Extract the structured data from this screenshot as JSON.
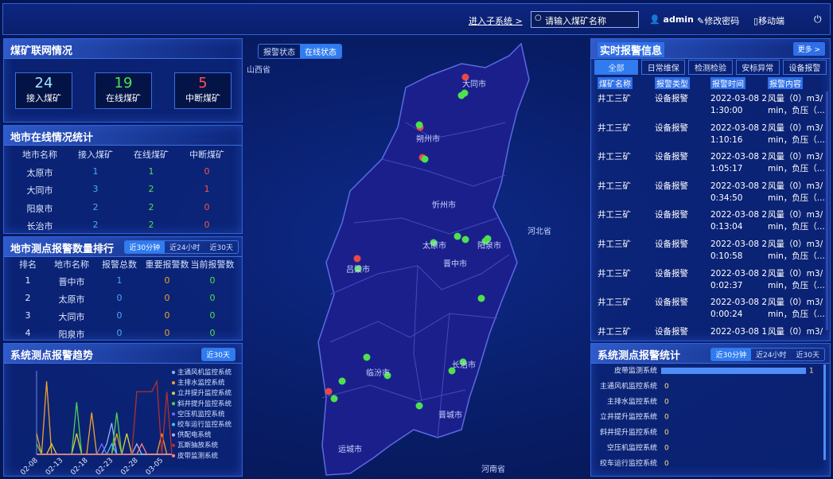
{
  "header": {
    "subsystem_link": "进入子系统 >",
    "search_placeholder": "请输入煤矿名称",
    "user": "admin",
    "change_password": "修改密码",
    "mobile": "移动端"
  },
  "mine_network": {
    "title": "煤矿联网情况",
    "stats": [
      {
        "value": 24,
        "label": "接入煤矿"
      },
      {
        "value": 19,
        "label": "在线煤矿"
      },
      {
        "value": 5,
        "label": "中断煤矿"
      }
    ]
  },
  "city_online": {
    "title": "地市在线情况统计",
    "columns": [
      "地市名称",
      "接入煤矿",
      "在线煤矿",
      "中断煤矿"
    ],
    "rows": [
      [
        "太原市",
        1,
        1,
        0
      ],
      [
        "大同市",
        3,
        2,
        1
      ],
      [
        "阳泉市",
        2,
        2,
        0
      ],
      [
        "长治市",
        2,
        2,
        0
      ]
    ]
  },
  "alarm_rank": {
    "title": "地市测点报警数量排行",
    "tabs": [
      "近30分钟",
      "近24小时",
      "近30天"
    ],
    "columns": [
      "排名",
      "地市名称",
      "报警总数",
      "重要报警数",
      "当前报警数"
    ],
    "rows": [
      [
        1,
        "晋中市",
        1,
        0,
        0
      ],
      [
        2,
        "太原市",
        0,
        0,
        0
      ],
      [
        3,
        "大同市",
        0,
        0,
        0
      ],
      [
        4,
        "阳泉市",
        0,
        0,
        0
      ]
    ]
  },
  "trend_panel": {
    "tabs": [
      "近30天"
    ]
  },
  "map": {
    "tabs": [
      "报警状态",
      "在线状态"
    ],
    "labels": [
      "山西省",
      "河北省",
      "河南省",
      "大同市",
      "朔州市",
      "忻州市",
      "太原市",
      "阳泉市",
      "晋中市",
      "吕梁市",
      "长治市",
      "临汾市",
      "晋城市",
      "运城市"
    ]
  },
  "realtime": {
    "title": "实时报警信息",
    "more": "更多 >",
    "tabs": [
      "全部",
      "日常维保",
      "检测检验",
      "安标异常",
      "设备报警"
    ],
    "columns": [
      "煤矿名称",
      "报警类型",
      "报警时间",
      "报警内容"
    ],
    "rows": [
      [
        "井工三矿",
        "设备报警",
        "2022-03-08 21:30:00",
        "风量（0）m3/min，负压（..."
      ],
      [
        "井工三矿",
        "设备报警",
        "2022-03-08 21:10:16",
        "风量（0）m3/min，负压（..."
      ],
      [
        "井工三矿",
        "设备报警",
        "2022-03-08 21:05:17",
        "风量（0）m3/min，负压（..."
      ],
      [
        "井工三矿",
        "设备报警",
        "2022-03-08 20:34:50",
        "风量（0）m3/min，负压（..."
      ],
      [
        "井工三矿",
        "设备报警",
        "2022-03-08 20:13:04",
        "风量（0）m3/min，负压（..."
      ],
      [
        "井工三矿",
        "设备报警",
        "2022-03-08 20:10:58",
        "风量（0）m3/min，负压（..."
      ],
      [
        "井工三矿",
        "设备报警",
        "2022-03-08 20:02:37",
        "风量（0）m3/min，负压（..."
      ],
      [
        "井工三矿",
        "设备报警",
        "2022-03-08 20:00:24",
        "风量（0）m3/min，负压（..."
      ],
      [
        "井工三矿",
        "设备报警",
        "2022-03-08 1",
        "风量（0）m3/"
      ]
    ]
  },
  "system_stats_panel": {
    "tabs": [
      "近30分钟",
      "近24小时",
      "近30天"
    ]
  },
  "chart_data": [
    {
      "type": "line",
      "title": "系统测点报警趋势",
      "categories": [
        "02-08",
        null,
        null,
        null,
        null,
        "02-13",
        null,
        null,
        null,
        null,
        "02-18",
        null,
        null,
        null,
        null,
        "02-23",
        null,
        null,
        null,
        null,
        "02-28",
        null,
        null,
        null,
        null,
        "03-05",
        null,
        null
      ],
      "ylim": [
        0,
        8
      ],
      "series": [
        {
          "name": "主通风机监控系统",
          "color": "#8ab4ff",
          "values": [
            0,
            0,
            0,
            0,
            0,
            0,
            0,
            0,
            0,
            0,
            0,
            0,
            0,
            0,
            1,
            3,
            0,
            0,
            0,
            0,
            0,
            0,
            0,
            0,
            0,
            0,
            0,
            0
          ]
        },
        {
          "name": "主排水监控系统",
          "color": "#f0a030",
          "values": [
            2,
            0,
            7,
            0,
            0,
            0,
            0,
            0,
            0,
            0,
            0,
            4,
            0,
            0,
            0,
            0,
            2,
            0,
            0,
            0,
            0,
            0,
            0,
            0,
            0,
            2,
            0,
            0
          ]
        },
        {
          "name": "立井提升监控系统",
          "color": "#e0d040",
          "values": [
            0,
            0,
            0,
            1,
            0,
            0,
            0,
            0,
            2,
            0,
            0,
            0,
            0,
            0,
            0,
            0,
            0,
            0,
            2,
            0,
            0,
            0,
            0,
            0,
            0,
            0,
            0,
            0
          ]
        },
        {
          "name": "斜井提升监控系统",
          "color": "#50d050",
          "values": [
            1,
            0,
            0,
            0,
            0,
            0,
            0,
            0,
            5,
            0,
            0,
            0,
            0,
            0,
            0,
            0,
            4,
            0,
            0,
            0,
            0,
            0,
            0,
            0,
            0,
            0,
            0,
            0
          ]
        },
        {
          "name": "空压机监控系统",
          "color": "#6a6aff",
          "values": [
            0,
            0,
            0,
            0,
            0,
            0,
            0,
            0,
            0,
            0,
            0,
            0,
            0,
            1,
            0,
            0,
            0,
            0,
            0,
            0,
            0,
            0,
            0,
            0,
            0,
            0,
            0,
            0
          ]
        },
        {
          "name": "绞车运行监控系统",
          "color": "#40c8e8",
          "values": [
            0,
            0,
            0,
            0,
            0,
            0,
            0,
            0,
            0,
            0,
            0,
            0,
            0,
            0,
            0,
            1,
            0,
            0,
            0,
            0,
            0,
            0,
            0,
            0,
            0,
            0,
            0,
            0
          ]
        },
        {
          "name": "供配电系统",
          "color": "#b0b0ff",
          "values": [
            0,
            0,
            0,
            0,
            0,
            0,
            0,
            0,
            0,
            0,
            0,
            0,
            0,
            0,
            0,
            0,
            0,
            0,
            0,
            0,
            1,
            0,
            0,
            0,
            0,
            0,
            0,
            0
          ]
        },
        {
          "name": "瓦斯抽放系统",
          "color": "#b03030",
          "values": [
            0,
            0,
            0,
            0,
            0,
            0,
            0,
            0,
            0,
            0,
            0,
            0,
            0,
            0,
            0,
            0,
            0,
            0,
            0,
            0,
            6,
            6,
            6,
            6,
            7,
            0,
            6,
            0
          ]
        },
        {
          "name": "皮带监测系统",
          "color": "#ff8080",
          "values": [
            0,
            0,
            0,
            0,
            0,
            0,
            0,
            0,
            0,
            0,
            0,
            0,
            0,
            0,
            0,
            0,
            0,
            0,
            0,
            0,
            0,
            1,
            0,
            0,
            0,
            0,
            0,
            0
          ]
        }
      ]
    },
    {
      "type": "bar",
      "orientation": "horizontal",
      "title": "系统测点报警统计",
      "categories": [
        "皮带监测系统",
        "主通风机监控系统",
        "主排水监控系统",
        "立井提升监控系统",
        "斜井提升监控系统",
        "空压机监控系统",
        "绞车运行监控系统"
      ],
      "values": [
        1,
        0,
        0,
        0,
        0,
        0,
        0
      ],
      "color": "#4f8ef7",
      "xlim": [
        0,
        1
      ]
    }
  ]
}
